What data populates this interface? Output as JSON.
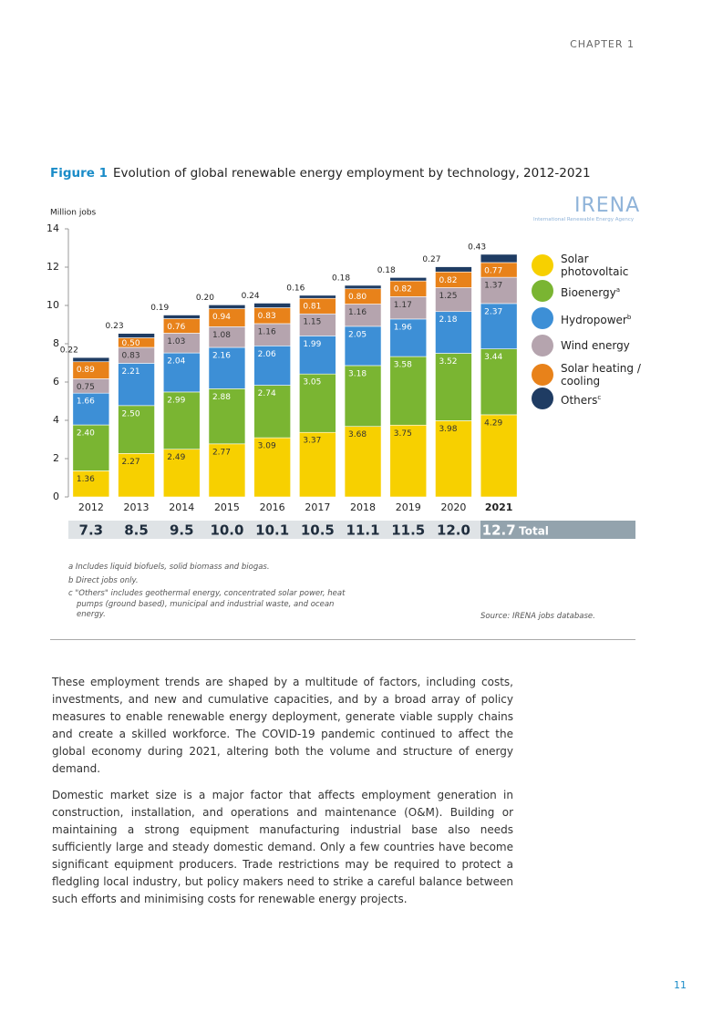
{
  "header": {
    "chapter": "CHAPTER 1"
  },
  "figure": {
    "label": "Figure 1",
    "title": "Evolution of global renewable energy employment by technology, 2012-2021"
  },
  "logo": {
    "name": "IRENA",
    "subtitle": "International Renewable Energy Agency"
  },
  "chart_data": {
    "type": "stacked_bar",
    "y_label": "Million jobs",
    "categories": [
      "2012",
      "2013",
      "2014",
      "2015",
      "2016",
      "2017",
      "2018",
      "2019",
      "2020",
      "2021"
    ],
    "ylim": [
      0,
      14
    ],
    "yticks": [
      0,
      2,
      4,
      6,
      8,
      10,
      12,
      14
    ],
    "grid": false,
    "legend": "right",
    "series": [
      {
        "name": "Solar photovoltaic",
        "color": "#f7d000",
        "values": [
          1.36,
          2.27,
          2.49,
          2.77,
          3.09,
          3.37,
          3.68,
          3.75,
          3.98,
          4.29
        ],
        "value_labels": [
          "1.36",
          "2.27",
          "2.49",
          "2.77",
          "3.09",
          "3.37",
          "3.68",
          "3.75",
          "3.98",
          "4.29"
        ]
      },
      {
        "name": "Bioenergy",
        "note": "a",
        "color": "#7ab532",
        "values": [
          2.4,
          2.5,
          2.99,
          2.88,
          2.74,
          3.05,
          3.18,
          3.58,
          3.52,
          3.44
        ],
        "value_labels": [
          "2.40",
          "2.50",
          "2.99",
          "2.88",
          "2.74",
          "3.05",
          "3.18",
          "3.58",
          "3.52",
          "3.44"
        ]
      },
      {
        "name": "Hydropower",
        "note": "b",
        "color": "#3d8fd6",
        "values": [
          1.66,
          2.21,
          2.04,
          2.16,
          2.06,
          1.99,
          2.05,
          1.96,
          2.18,
          2.37
        ],
        "value_labels": [
          "1.66",
          "2.21",
          "2.04",
          "2.16",
          "2.06",
          "1.99",
          "2.05",
          "1.96",
          "2.18",
          "2.37"
        ]
      },
      {
        "name": "Wind energy",
        "color": "#b5a4ae",
        "values": [
          0.75,
          0.83,
          1.03,
          1.08,
          1.16,
          1.15,
          1.16,
          1.17,
          1.25,
          1.37
        ],
        "value_labels": [
          "0.75",
          "0.83",
          "1.03",
          "1.08",
          "1.16",
          "1.15",
          "1.16",
          "1.17",
          "1.25",
          "1.37"
        ]
      },
      {
        "name": "Solar heating / cooling",
        "color": "#e8821a",
        "values": [
          0.89,
          0.5,
          0.76,
          0.94,
          0.83,
          0.81,
          0.8,
          0.82,
          0.82,
          0.77
        ],
        "value_labels": [
          "0.89",
          "0.50",
          "0.76",
          "0.94",
          "0.83",
          "0.81",
          "0.80",
          "0.82",
          "0.82",
          "0.77"
        ]
      },
      {
        "name": "Others",
        "note": "c",
        "color": "#1f3c63",
        "values": [
          0.22,
          0.23,
          0.19,
          0.2,
          0.24,
          0.16,
          0.18,
          0.18,
          0.27,
          0.43
        ],
        "value_labels": [
          "0.22",
          "0.23",
          "0.19",
          "0.20",
          "0.24",
          "0.16",
          "0.18",
          "0.18",
          "0.27",
          "0.43"
        ]
      }
    ],
    "totals": {
      "label": "Total",
      "values": [
        7.3,
        8.5,
        9.5,
        10.0,
        10.1,
        10.5,
        11.1,
        11.5,
        12.0,
        12.7
      ],
      "value_labels": [
        "7.3",
        "8.5",
        "9.5",
        "10.0",
        "10.1",
        "10.5",
        "11.1",
        "11.5",
        "12.0",
        "12.7"
      ]
    }
  },
  "notes": [
    "a  Includes liquid biofuels, solid biomass and biogas.",
    "b  Direct jobs only.",
    "c  \"Others\" includes geothermal energy, concentrated solar power, heat pumps (ground based), municipal and industrial waste, and ocean energy."
  ],
  "source": "Source: IRENA jobs database.",
  "body": [
    "These employment trends are shaped by a multitude of factors, including costs, investments, and new and cumulative capacities, and by a broad array of policy measures to enable renewable energy deployment, generate viable supply chains and create a skilled workforce. The COVID-19 pandemic continued to affect the global economy during 2021, altering both the volume and structure of energy demand.",
    "Domestic market size is a major factor that affects employment generation in construction, installation, and operations and maintenance (O&M). Building or maintaining a strong equipment manufacturing industrial base also needs sufficiently large and steady domestic demand. Only a few countries have become significant equipment producers. Trade restrictions may be required to protect a fledgling local industry, but policy makers need to strike a careful balance between such efforts and minimising costs for renewable energy projects."
  ],
  "page_number": "11"
}
